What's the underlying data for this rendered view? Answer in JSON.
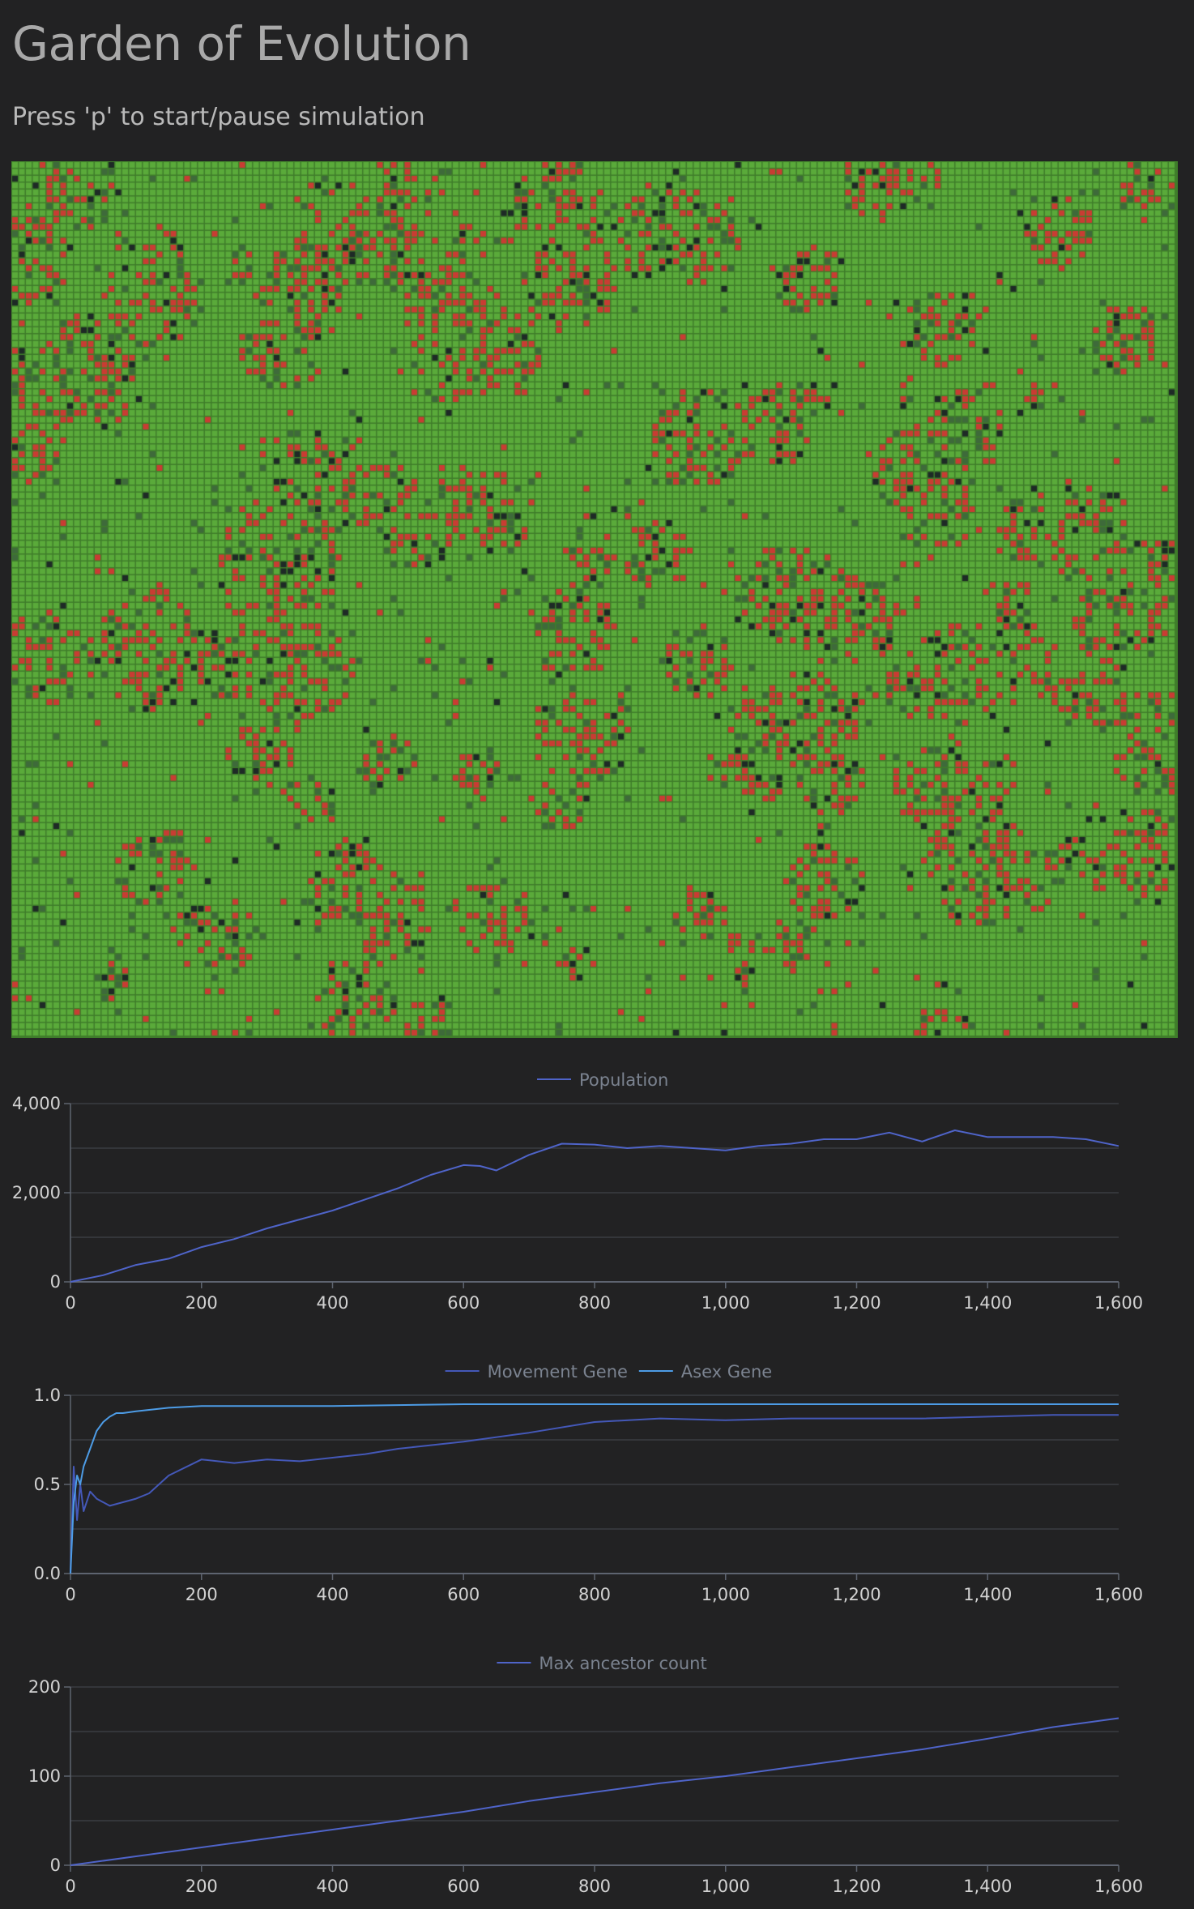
{
  "page": {
    "title": "Garden of Evolution",
    "instructions": "Press 'p' to start/pause simulation"
  },
  "colors": {
    "background": "#222223",
    "grass": "#5aaa3a",
    "grass_grid": "#3f7d2a",
    "creature_red": "#c93c33",
    "creature_dark": "#1e2a26",
    "creature_mid": "#3e6a3a",
    "axis_line": "#5e6470",
    "grid_line": "#3a3d42",
    "tick_text": "#d2d2d2",
    "legend_text": "#7b8390",
    "series_population": "#4f64c9",
    "series_movement": "#4458b8",
    "series_asex": "#4d9ce6"
  },
  "garden": {
    "name": "simulation-grid"
  },
  "chart_data": [
    {
      "type": "line",
      "title": "",
      "legend_position": "top-center",
      "xlim": [
        0,
        1600
      ],
      "ylim": [
        0,
        4000
      ],
      "x_ticks": [
        0,
        200,
        400,
        600,
        800,
        1000,
        1200,
        1400,
        1600
      ],
      "x_tick_labels": [
        "0",
        "200",
        "400",
        "600",
        "800",
        "1,000",
        "1,200",
        "1,400",
        "1,600"
      ],
      "y_ticks": [
        0,
        2000,
        4000
      ],
      "y_tick_labels": [
        "0",
        "2,000",
        "4,000"
      ],
      "y_gridlines": [
        0,
        1000,
        2000,
        3000,
        4000
      ],
      "series": [
        {
          "name": "Population",
          "color": "#4f64c9",
          "x": [
            0,
            50,
            100,
            150,
            200,
            250,
            300,
            350,
            400,
            450,
            500,
            550,
            600,
            625,
            650,
            700,
            750,
            800,
            850,
            900,
            950,
            1000,
            1050,
            1100,
            1150,
            1200,
            1250,
            1300,
            1350,
            1400,
            1450,
            1500,
            1550,
            1600
          ],
          "y": [
            0,
            150,
            380,
            520,
            780,
            960,
            1200,
            1400,
            1600,
            1850,
            2100,
            2400,
            2620,
            2600,
            2500,
            2850,
            3100,
            3080,
            3000,
            3050,
            3000,
            2950,
            3050,
            3100,
            3200,
            3200,
            3350,
            3150,
            3400,
            3250,
            3250,
            3250,
            3200,
            3050
          ]
        }
      ]
    },
    {
      "type": "line",
      "title": "",
      "legend_position": "top-center",
      "xlim": [
        0,
        1600
      ],
      "ylim": [
        0,
        1
      ],
      "x_ticks": [
        0,
        200,
        400,
        600,
        800,
        1000,
        1200,
        1400,
        1600
      ],
      "x_tick_labels": [
        "0",
        "200",
        "400",
        "600",
        "800",
        "1,000",
        "1,200",
        "1,400",
        "1,600"
      ],
      "y_ticks": [
        0,
        0.5,
        1
      ],
      "y_tick_labels": [
        "0.0",
        "0.5",
        "1.0"
      ],
      "y_gridlines": [
        0,
        0.25,
        0.5,
        0.75,
        1
      ],
      "series": [
        {
          "name": "Movement Gene",
          "color": "#4458b8",
          "x": [
            0,
            5,
            10,
            15,
            20,
            30,
            40,
            60,
            80,
            100,
            120,
            150,
            200,
            250,
            300,
            350,
            400,
            450,
            500,
            550,
            600,
            700,
            800,
            900,
            1000,
            1100,
            1200,
            1300,
            1400,
            1500,
            1600
          ],
          "y": [
            0,
            0.6,
            0.3,
            0.5,
            0.35,
            0.46,
            0.42,
            0.38,
            0.4,
            0.42,
            0.45,
            0.55,
            0.64,
            0.62,
            0.64,
            0.63,
            0.65,
            0.67,
            0.7,
            0.72,
            0.74,
            0.79,
            0.85,
            0.87,
            0.86,
            0.87,
            0.87,
            0.87,
            0.88,
            0.89,
            0.89
          ]
        },
        {
          "name": "Asex Gene",
          "color": "#4d9ce6",
          "x": [
            0,
            5,
            10,
            15,
            20,
            30,
            40,
            50,
            60,
            70,
            80,
            100,
            150,
            200,
            300,
            400,
            600,
            800,
            1000,
            1200,
            1400,
            1600
          ],
          "y": [
            0,
            0.4,
            0.55,
            0.5,
            0.6,
            0.7,
            0.8,
            0.85,
            0.88,
            0.9,
            0.9,
            0.91,
            0.93,
            0.94,
            0.94,
            0.94,
            0.95,
            0.95,
            0.95,
            0.95,
            0.95,
            0.95
          ]
        }
      ]
    },
    {
      "type": "line",
      "title": "",
      "legend_position": "top-center",
      "xlim": [
        0,
        1600
      ],
      "ylim": [
        0,
        200
      ],
      "x_ticks": [
        0,
        200,
        400,
        600,
        800,
        1000,
        1200,
        1400,
        1600
      ],
      "x_tick_labels": [
        "0",
        "200",
        "400",
        "600",
        "800",
        "1,000",
        "1,200",
        "1,400",
        "1,600"
      ],
      "y_ticks": [
        0,
        100,
        200
      ],
      "y_tick_labels": [
        "0",
        "100",
        "200"
      ],
      "y_gridlines": [
        0,
        50,
        100,
        150,
        200
      ],
      "series": [
        {
          "name": "Max ancestor count",
          "color": "#4f64c9",
          "x": [
            0,
            100,
            200,
            300,
            400,
            500,
            600,
            700,
            800,
            900,
            1000,
            1100,
            1200,
            1300,
            1400,
            1500,
            1600
          ],
          "y": [
            0,
            10,
            20,
            30,
            40,
            50,
            60,
            72,
            82,
            92,
            100,
            110,
            120,
            130,
            142,
            155,
            165
          ]
        }
      ]
    }
  ]
}
